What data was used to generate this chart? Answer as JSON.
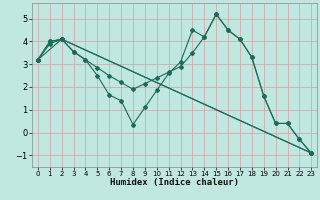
{
  "xlabel": "Humidex (Indice chaleur)",
  "background_color": "#c0e8e0",
  "grid_color": "#d4a0a0",
  "line_color": "#1a6b5a",
  "xlim": [
    -0.5,
    23.5
  ],
  "ylim": [
    -1.5,
    5.7
  ],
  "xticks": [
    0,
    1,
    2,
    3,
    4,
    5,
    6,
    7,
    8,
    9,
    10,
    11,
    12,
    13,
    14,
    15,
    16,
    17,
    18,
    19,
    20,
    21,
    22,
    23
  ],
  "yticks": [
    -1,
    0,
    1,
    2,
    3,
    4,
    5
  ],
  "lines": [
    {
      "x": [
        0,
        1,
        2,
        3,
        4,
        5,
        6,
        7,
        8,
        9,
        10,
        11,
        12,
        13,
        14,
        15,
        16,
        17,
        18,
        19,
        20,
        21,
        22,
        23
      ],
      "y": [
        3.2,
        4.0,
        4.1,
        3.55,
        3.2,
        2.5,
        1.65,
        1.4,
        0.35,
        1.1,
        1.85,
        2.6,
        3.1,
        4.5,
        4.2,
        5.2,
        4.5,
        4.1,
        3.3,
        1.6,
        0.4,
        0.4,
        -0.3,
        -0.9
      ]
    },
    {
      "x": [
        0,
        1,
        2,
        3,
        4,
        5,
        6,
        7,
        8,
        9,
        10,
        11,
        12,
        13,
        14,
        15,
        16,
        17,
        18,
        19,
        20,
        21,
        22,
        23
      ],
      "y": [
        3.2,
        4.0,
        4.1,
        3.55,
        3.2,
        2.85,
        2.5,
        2.2,
        1.9,
        2.15,
        2.4,
        2.65,
        2.9,
        3.5,
        4.2,
        5.2,
        4.5,
        4.1,
        3.3,
        1.6,
        0.4,
        0.4,
        -0.3,
        -0.9
      ]
    },
    {
      "x": [
        0,
        1,
        2,
        23
      ],
      "y": [
        3.2,
        3.9,
        4.1,
        -0.9
      ]
    },
    {
      "x": [
        0,
        2,
        23
      ],
      "y": [
        3.2,
        4.1,
        -0.9
      ]
    }
  ]
}
